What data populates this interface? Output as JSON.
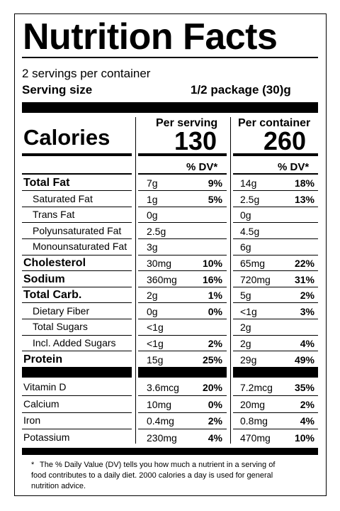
{
  "title": "Nutrition Facts",
  "servings_per_container": "2 servings per container",
  "serving_size_label": "Serving size",
  "serving_size_value": "1/2 package (30)g",
  "calories_label": "Calories",
  "per_serving_header": "Per serving",
  "per_container_header": "Per container",
  "calories_per_serving": "130",
  "calories_per_container": "260",
  "dv_header": "% DV*",
  "nutrients": [
    {
      "name": "Total Fat",
      "bold": true,
      "indent": false,
      "s_amt": "7g",
      "s_dv": "9%",
      "c_amt": "14g",
      "c_dv": "18%"
    },
    {
      "name": "Saturated Fat",
      "bold": false,
      "indent": true,
      "s_amt": "1g",
      "s_dv": "5%",
      "c_amt": "2.5g",
      "c_dv": "13%"
    },
    {
      "name": "Trans Fat",
      "bold": false,
      "indent": true,
      "s_amt": "0g",
      "s_dv": "",
      "c_amt": "0g",
      "c_dv": ""
    },
    {
      "name": "Polyunsaturated Fat",
      "bold": false,
      "indent": true,
      "s_amt": "2.5g",
      "s_dv": "",
      "c_amt": "4.5g",
      "c_dv": ""
    },
    {
      "name": "Monounsaturated Fat",
      "bold": false,
      "indent": true,
      "s_amt": "3g",
      "s_dv": "",
      "c_amt": "6g",
      "c_dv": ""
    },
    {
      "name": "Cholesterol",
      "bold": true,
      "indent": false,
      "s_amt": "30mg",
      "s_dv": "10%",
      "c_amt": "65mg",
      "c_dv": "22%"
    },
    {
      "name": "Sodium",
      "bold": true,
      "indent": false,
      "s_amt": "360mg",
      "s_dv": "16%",
      "c_amt": "720mg",
      "c_dv": "31%"
    },
    {
      "name": "Total Carb.",
      "bold": true,
      "indent": false,
      "s_amt": "2g",
      "s_dv": "1%",
      "c_amt": "5g",
      "c_dv": "2%"
    },
    {
      "name": "Dietary Fiber",
      "bold": false,
      "indent": true,
      "s_amt": "0g",
      "s_dv": "0%",
      "c_amt": "<1g",
      "c_dv": "3%"
    },
    {
      "name": "Total Sugars",
      "bold": false,
      "indent": true,
      "s_amt": "<1g",
      "s_dv": "",
      "c_amt": "2g",
      "c_dv": ""
    },
    {
      "name": "Incl. Added Sugars",
      "bold": false,
      "indent": true,
      "s_amt": "<1g",
      "s_dv": "2%",
      "c_amt": "2g",
      "c_dv": "4%"
    },
    {
      "name": "Protein",
      "bold": true,
      "indent": false,
      "s_amt": "15g",
      "s_dv": "25%",
      "c_amt": "29g",
      "c_dv": "49%"
    }
  ],
  "vitamins": [
    {
      "name": "Vitamin D",
      "s_amt": "3.6mcg",
      "s_dv": "20%",
      "c_amt": "7.2mcg",
      "c_dv": "35%"
    },
    {
      "name": "Calcium",
      "s_amt": "10mg",
      "s_dv": "0%",
      "c_amt": "20mg",
      "c_dv": "2%"
    },
    {
      "name": "Iron",
      "s_amt": "0.4mg",
      "s_dv": "2%",
      "c_amt": "0.8mg",
      "c_dv": "4%"
    },
    {
      "name": "Potassium",
      "s_amt": "230mg",
      "s_dv": "4%",
      "c_amt": "470mg",
      "c_dv": "10%"
    }
  ],
  "footnote": {
    "asterisk": "*",
    "lines": [
      "The % Daily Value (DV) tells you how much a nutrient in a serving of",
      "food contributes to a daily diet. 2000 calories a day is used for general",
      "nutrition advice."
    ]
  }
}
